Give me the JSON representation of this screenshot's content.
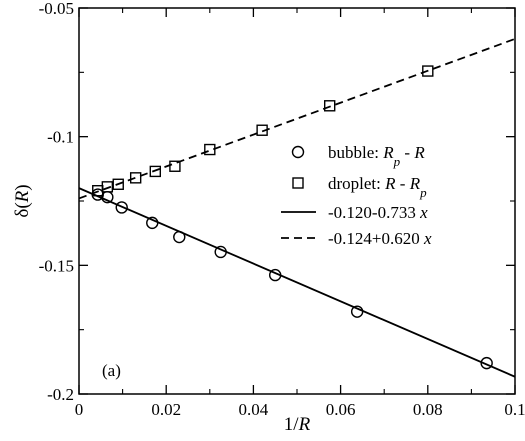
{
  "chart_data": {
    "type": "scatter",
    "xlabel": "1/R",
    "ylabel": "δ(R)",
    "xlim": [
      0,
      0.1
    ],
    "ylim": [
      -0.2,
      -0.05
    ],
    "x_ticks": [
      "0",
      "0.02",
      "0.04",
      "0.06",
      "0.08",
      "0.1"
    ],
    "y_ticks": [
      "-0.2",
      "-0.15",
      "-0.1",
      "-0.05"
    ],
    "grid": false,
    "legend_position": "center-right",
    "panel_label": "(a)",
    "series": [
      {
        "name": "bubble: R_p - R",
        "label_parts": [
          "bubble: ",
          "R",
          "p",
          " - ",
          "R"
        ],
        "marker": "circle",
        "x": [
          0.0043,
          0.0065,
          0.0098,
          0.0168,
          0.023,
          0.0325,
          0.045,
          0.0638,
          0.0935
        ],
        "y": [
          -0.1225,
          -0.1235,
          -0.1275,
          -0.1335,
          -0.139,
          -0.1448,
          -0.1538,
          -0.168,
          -0.188
        ]
      },
      {
        "name": "droplet: R - R_p",
        "label_parts": [
          "droplet: ",
          "R",
          " - ",
          "R",
          "p"
        ],
        "marker": "square",
        "x": [
          0.0043,
          0.0065,
          0.009,
          0.013,
          0.0175,
          0.022,
          0.03,
          0.042,
          0.0575,
          0.08
        ],
        "y": [
          -0.121,
          -0.1195,
          -0.1185,
          -0.116,
          -0.1135,
          -0.1115,
          -0.105,
          -0.0975,
          -0.088,
          -0.0745
        ]
      }
    ],
    "fits": [
      {
        "label": "-0.120-0.733 x",
        "label_prefix": "-0.120-0.733 ",
        "label_var": "x",
        "style": "solid",
        "intercept": -0.12,
        "slope": -0.733
      },
      {
        "label": "-0.124+0.620 x",
        "label_prefix": "-0.124+0.620 ",
        "label_var": "x",
        "style": "dashed",
        "intercept": -0.124,
        "slope": 0.62
      }
    ]
  }
}
